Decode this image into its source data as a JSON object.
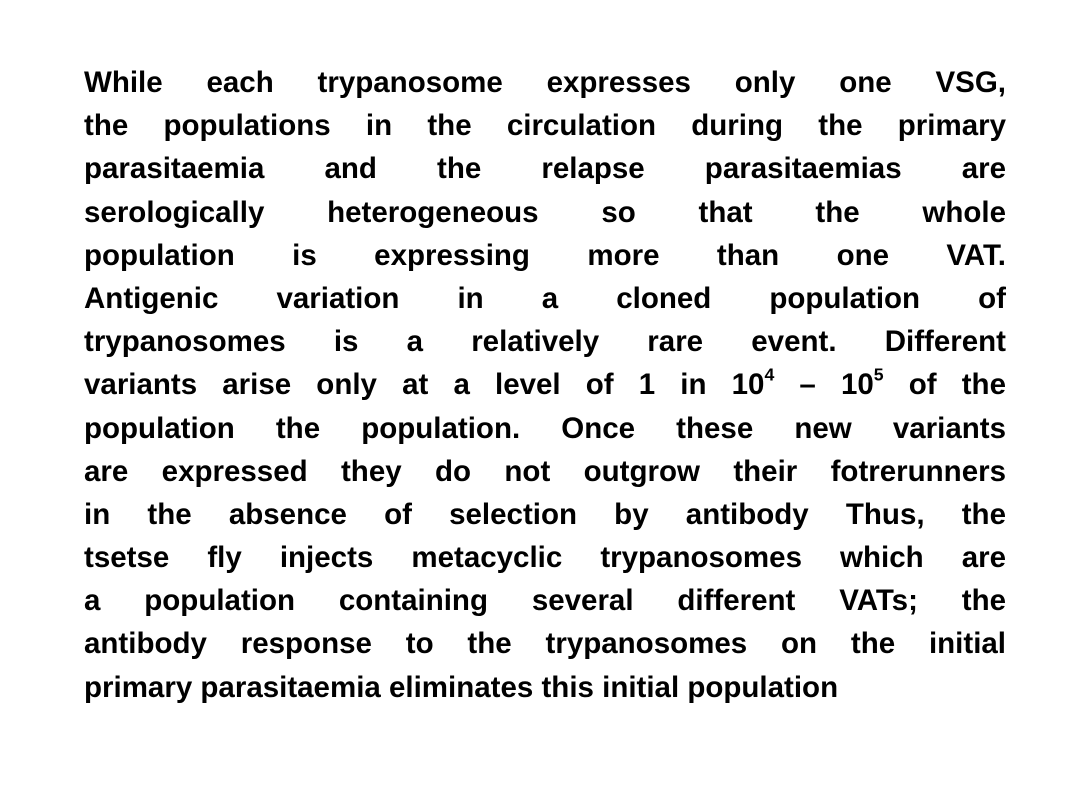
{
  "paragraph": {
    "lines": [
      "While each trypanosome expresses only one VSG,",
      "the populations in the circulation during the primary",
      "parasitaemia and the relapse parasitaemias are",
      "serologically heterogeneous so that the whole",
      "population is expressing more than one VAT.",
      "Antigenic variation in a cloned population of",
      "trypanosomes is a relatively rare event. Different",
      {
        "before": "variants arise only at a level of 1 in 10",
        "exp1": "4",
        "middle": " – 10",
        "exp2": "5",
        "after": " of the"
      },
      "population the population. Once these new variants",
      "are expressed they do not outgrow their fotrerunners",
      "in the absence of selection by antibody Thus, the",
      "tsetse fly injects metacyclic trypanosomes which are",
      "a population containing several different VATs; the",
      "antibody response to the trypanosomes on the initial",
      "primary parasitaemia eliminates this initial population"
    ]
  }
}
